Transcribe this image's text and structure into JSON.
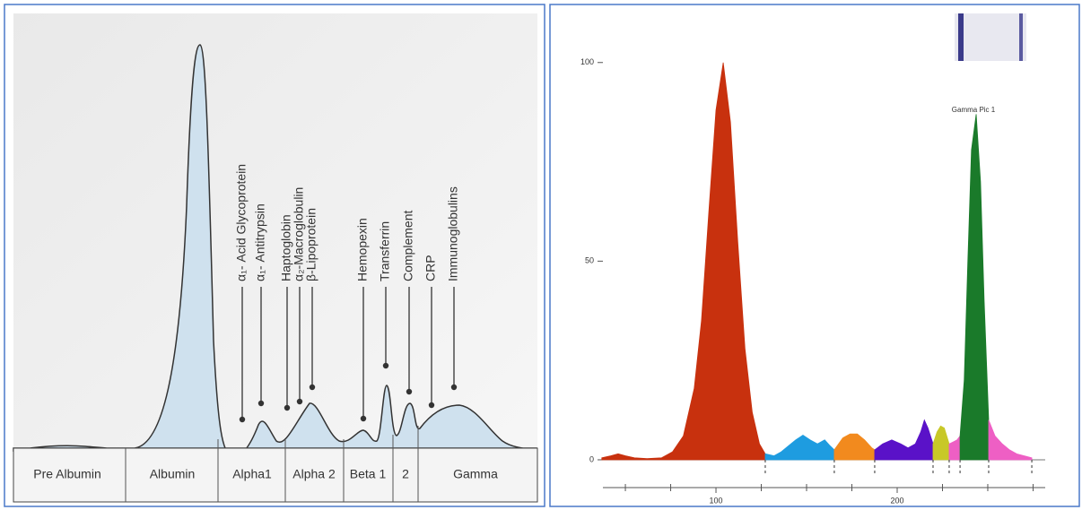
{
  "diagram": {
    "fractions": [
      "Pre Albumin",
      "Albumin",
      "Alpha1",
      "Alpha 2",
      "Beta 1",
      "2",
      "Gamma"
    ],
    "proteins": [
      "α₁- Acid Glycoprotein",
      "α₁- Antitrypsin",
      "Haptoglobin",
      "α₂-Macroglobulin",
      "β-Lipoprotein",
      "Hemopexin",
      "Transferrin",
      "Complement",
      "CRP",
      "Immunoglobulins"
    ]
  },
  "chart_data": {
    "type": "area",
    "annotation": "Gamma Pic 1",
    "xlim": [
      37.6,
      281.7
    ],
    "ylim": [
      -7,
      111
    ],
    "xticks": [
      100,
      200
    ],
    "xminorticks": [
      50,
      75,
      125,
      150,
      175,
      225,
      250,
      275
    ],
    "yticks": [
      0,
      50,
      100
    ],
    "boundaries": [
      127.2,
      165.3,
      187.6,
      219.8,
      228.7,
      234.7,
      250.5,
      274.3
    ],
    "series": [
      {
        "color": "#c8310e",
        "x": [
          37,
          42,
          46,
          50,
          55,
          62,
          70,
          76,
          82,
          88,
          92,
          96,
          100,
          104,
          108,
          112,
          116,
          120,
          124,
          127.2
        ],
        "values": [
          0.5,
          1,
          1.5,
          1,
          0.5,
          0.3,
          0.5,
          2,
          6,
          18,
          35,
          62,
          88,
          100,
          85,
          55,
          28,
          12,
          4,
          1.5
        ]
      },
      {
        "color": "#1e9ce0",
        "x": [
          127.2,
          132,
          136,
          140,
          144,
          148,
          152,
          156,
          160,
          163,
          165.3
        ],
        "values": [
          1.5,
          1,
          2,
          3.5,
          5,
          6.2,
          5,
          4,
          5,
          3.5,
          2.5
        ]
      },
      {
        "color": "#f28a1e",
        "x": [
          165.3,
          170,
          174,
          178,
          182,
          186,
          187.6
        ],
        "values": [
          2.5,
          5.5,
          6.5,
          6.5,
          5,
          3,
          2.5
        ]
      },
      {
        "color": "#5a12c8",
        "x": [
          187.6,
          192,
          197,
          202,
          206,
          210,
          213,
          215,
          217,
          219.8
        ],
        "values": [
          2.5,
          4,
          5,
          4,
          3,
          4,
          7,
          10,
          8,
          4
        ]
      },
      {
        "color": "#c8c828",
        "x": [
          219.8,
          222,
          224,
          226,
          228.7
        ],
        "values": [
          4,
          7,
          8.5,
          8,
          4
        ]
      },
      {
        "color": "#ee5fc4",
        "x": [
          228.7,
          231,
          233,
          234.7
        ],
        "values": [
          4,
          4.5,
          5,
          6
        ]
      },
      {
        "color": "#1a7a2a",
        "x": [
          234.7,
          237,
          239,
          241,
          243.6,
          246,
          248,
          250.5
        ],
        "values": [
          6,
          20,
          50,
          78,
          87,
          70,
          40,
          10
        ]
      },
      {
        "color": "#ee5fc4",
        "x": [
          250.5,
          254,
          258,
          262,
          266,
          270,
          274.3
        ],
        "values": [
          10,
          6,
          4,
          2.5,
          1.5,
          1,
          0.5
        ]
      }
    ]
  }
}
